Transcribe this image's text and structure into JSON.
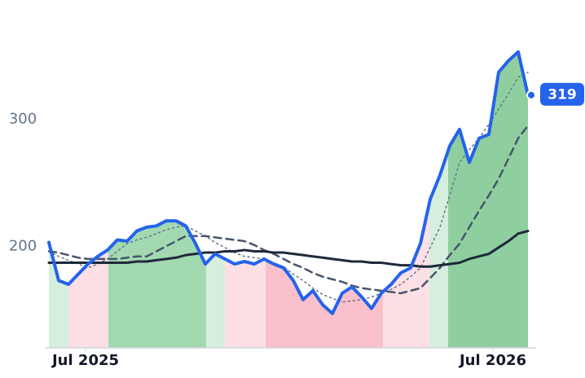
{
  "chart_data": {
    "type": "line",
    "x": [
      2025.41,
      2025.434,
      2025.458,
      2025.482,
      2025.506,
      2025.53,
      2025.554,
      2025.578,
      2025.602,
      2025.626,
      2025.65,
      2025.674,
      2025.698,
      2025.722,
      2025.746,
      2025.77,
      2025.794,
      2025.818,
      2025.842,
      2025.866,
      2025.89,
      2025.914,
      2025.938,
      2025.962,
      2025.986,
      2026.01,
      2026.034,
      2026.058,
      2026.082,
      2026.106,
      2026.13,
      2026.154,
      2026.178,
      2026.202,
      2026.226,
      2026.25,
      2026.274,
      2026.298,
      2026.322,
      2026.346,
      2026.37,
      2026.394,
      2026.418,
      2026.442,
      2026.466,
      2026.49,
      2026.514,
      2026.538,
      2026.562,
      2026.586
    ],
    "series": [
      {
        "color": "#64748b",
        "dash": "dot",
        "width": 1.5,
        "values": [
          196,
          192,
          189,
          186,
          183,
          186,
          190,
          196,
          202,
          205,
          207,
          210,
          213,
          215,
          216,
          212,
          208,
          203,
          199,
          195,
          192,
          191,
          190,
          187,
          184,
          178,
          173,
          167,
          162,
          159,
          156,
          157,
          158,
          160,
          163,
          166,
          170,
          176,
          183,
          199,
          215,
          240,
          266,
          276,
          285,
          296,
          308,
          320,
          333,
          337
        ]
      },
      {
        "color": "#475569",
        "dash": "dash",
        "width": 2.5,
        "values": [
          196,
          195,
          193,
          191,
          190,
          190,
          190,
          190,
          191,
          192,
          192,
          196,
          200,
          204,
          208,
          208,
          208,
          207,
          206,
          205,
          204,
          201,
          197,
          194,
          190,
          186,
          183,
          179,
          176,
          174,
          172,
          169,
          167,
          166,
          165,
          164,
          163,
          165,
          167,
          175,
          183,
          193,
          202,
          215,
          228,
          240,
          253,
          269,
          285,
          295
        ]
      },
      {
        "color": "#1e293b",
        "dash": "solid",
        "width": 3,
        "values": [
          187,
          187,
          187,
          187,
          187,
          187,
          187,
          187,
          187,
          188,
          188,
          189,
          190,
          191,
          193,
          194,
          195,
          195,
          196,
          196,
          197,
          196,
          196,
          195,
          195,
          194,
          193,
          192,
          191,
          190,
          189,
          188,
          188,
          187,
          187,
          186,
          185,
          185,
          184,
          184,
          185,
          186,
          187,
          190,
          192,
          194,
          199,
          204,
          210,
          212
        ]
      },
      {
        "color": "#2563eb",
        "dash": "solid",
        "width": 4,
        "values": [
          203,
          173,
          170,
          178,
          186,
          192,
          197,
          205,
          204,
          212,
          215,
          216,
          220,
          220,
          216,
          202,
          186,
          194,
          190,
          186,
          188,
          186,
          190,
          186,
          183,
          173,
          158,
          165,
          154,
          147,
          163,
          168,
          160,
          151,
          163,
          170,
          179,
          183,
          202,
          237,
          256,
          279,
          292,
          266,
          285,
          288,
          337,
          346,
          353,
          319
        ]
      }
    ],
    "regions": [
      {
        "start": 2025.41,
        "end": 2025.458,
        "color": "#d5eedd"
      },
      {
        "start": 2025.458,
        "end": 2025.556,
        "color": "#fde0e5"
      },
      {
        "start": 2025.556,
        "end": 2025.796,
        "color": "#a3d9b1"
      },
      {
        "start": 2025.796,
        "end": 2025.842,
        "color": "#d5eedd"
      },
      {
        "start": 2025.842,
        "end": 2025.942,
        "color": "#fde0e5"
      },
      {
        "start": 2025.942,
        "end": 2026.23,
        "color": "#f9c0cb"
      },
      {
        "start": 2026.23,
        "end": 2026.344,
        "color": "#fde0e5"
      },
      {
        "start": 2026.344,
        "end": 2026.39,
        "color": "#d5eedd"
      },
      {
        "start": 2026.39,
        "end": 2026.586,
        "color": "#8fcf9f"
      }
    ],
    "xlim": [
      2025.4,
      2026.6
    ],
    "xticks": [
      {
        "value": 2025.5,
        "label": "Jul 2025"
      },
      {
        "value": 2026.5,
        "label": "Jul 2026"
      }
    ],
    "ylim": [
      120,
      390
    ],
    "yticks": [
      200,
      300
    ],
    "grid": false
  }
}
